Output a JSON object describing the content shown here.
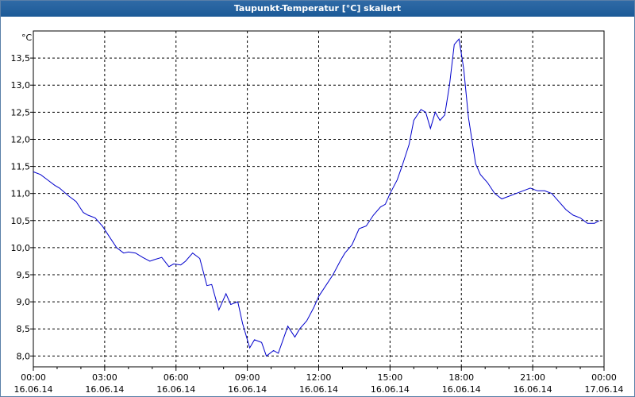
{
  "window": {
    "title": "Taupunkt-Temperatur [°C] skaliert"
  },
  "colors": {
    "series": "#0000cc",
    "grid": "#000000",
    "frame": "#000000"
  },
  "chart_data": {
    "type": "line",
    "title": "Taupunkt-Temperatur [°C] skaliert",
    "ylabel": "°C",
    "xlabel": "",
    "grid": true,
    "xlim": [
      0,
      24
    ],
    "ylim": [
      7.8,
      14.0
    ],
    "yticks": [
      "13,5",
      "13,0",
      "12,5",
      "12,0",
      "11,5",
      "11,0",
      "10,5",
      "10,0",
      "9,5",
      "9,0",
      "8,5",
      "8,0"
    ],
    "ytick_values": [
      13.5,
      13.0,
      12.5,
      12.0,
      11.5,
      11.0,
      10.5,
      10.0,
      9.5,
      9.0,
      8.5,
      8.0
    ],
    "xticks": [
      {
        "hour": 0,
        "time": "00:00",
        "date": "16.06.14"
      },
      {
        "hour": 3,
        "time": "03:00",
        "date": "16.06.14"
      },
      {
        "hour": 6,
        "time": "06:00",
        "date": "16.06.14"
      },
      {
        "hour": 9,
        "time": "09:00",
        "date": "16.06.14"
      },
      {
        "hour": 12,
        "time": "12:00",
        "date": "16.06.14"
      },
      {
        "hour": 15,
        "time": "15:00",
        "date": "16.06.14"
      },
      {
        "hour": 18,
        "time": "18:00",
        "date": "16.06.14"
      },
      {
        "hour": 21,
        "time": "21:00",
        "date": "16.06.14"
      },
      {
        "hour": 24,
        "time": "00:00",
        "date": "17.06.14"
      }
    ],
    "series": [
      {
        "x": [
          0.0,
          0.3,
          0.6,
          0.9,
          1.1,
          1.5,
          1.8,
          2.1,
          2.3,
          2.6,
          2.9,
          3.2,
          3.5,
          3.8,
          4.0,
          4.3,
          4.6,
          4.9,
          5.1,
          5.4,
          5.7,
          5.9,
          6.2,
          6.4,
          6.7,
          7.0,
          7.3,
          7.5,
          7.8,
          8.1,
          8.3,
          8.6,
          8.8,
          9.1,
          9.3,
          9.6,
          9.8,
          10.1,
          10.3,
          10.5,
          10.7,
          11.0,
          11.2,
          11.5,
          11.8,
          12.0,
          12.3,
          12.6,
          12.9,
          13.1,
          13.4,
          13.7,
          14.0,
          14.3,
          14.6,
          14.8,
          15.0,
          15.3,
          15.5,
          15.8,
          16.0,
          16.3,
          16.5,
          16.7,
          16.9,
          17.1,
          17.3,
          17.5,
          17.7,
          17.9,
          18.1,
          18.3,
          18.6,
          18.8,
          19.1,
          19.4,
          19.7,
          20.0,
          20.3,
          20.6,
          20.9,
          21.2,
          21.5,
          21.8,
          22.1,
          22.4,
          22.7,
          23.0,
          23.3,
          23.6,
          23.8
        ],
        "y": [
          11.4,
          11.35,
          11.25,
          11.15,
          11.1,
          10.95,
          10.85,
          10.65,
          10.6,
          10.55,
          10.4,
          10.2,
          10.0,
          9.9,
          9.92,
          9.9,
          9.82,
          9.75,
          9.78,
          9.82,
          9.65,
          9.7,
          9.68,
          9.75,
          9.9,
          9.8,
          9.3,
          9.32,
          8.85,
          9.15,
          8.95,
          9.0,
          8.6,
          8.15,
          8.3,
          8.25,
          8.0,
          8.1,
          8.05,
          8.3,
          8.55,
          8.35,
          8.5,
          8.65,
          8.9,
          9.1,
          9.3,
          9.5,
          9.75,
          9.9,
          10.05,
          10.35,
          10.4,
          10.6,
          10.75,
          10.8,
          11.0,
          11.25,
          11.5,
          11.9,
          12.35,
          12.55,
          12.5,
          12.2,
          12.5,
          12.35,
          12.45,
          13.0,
          13.75,
          13.85,
          13.3,
          12.4,
          11.55,
          11.35,
          11.2,
          11.0,
          10.9,
          10.95,
          11.0,
          11.05,
          11.1,
          11.05,
          11.05,
          11.0,
          10.85,
          10.7,
          10.6,
          10.55,
          10.45,
          10.45,
          10.5
        ]
      }
    ]
  }
}
